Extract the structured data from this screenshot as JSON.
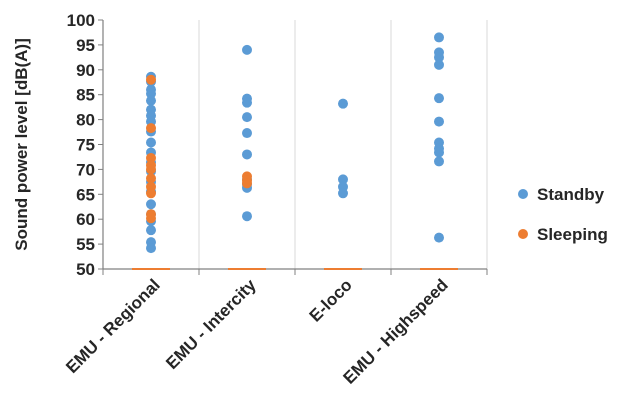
{
  "chart_data": {
    "type": "scatter",
    "categories": [
      "EMU - Regional",
      "EMU - Intercity",
      "E-loco",
      "EMU - Highspeed"
    ],
    "ylabel": "Sound power level [dB(A)]",
    "xlabel": "",
    "title": "",
    "ylim": [
      50,
      100
    ],
    "yticks": [
      50,
      55,
      60,
      65,
      70,
      75,
      80,
      85,
      90,
      95,
      100
    ],
    "grid": "vertical category dividers",
    "legend_position": "right",
    "series": [
      {
        "name": "Standby",
        "color": "#5b9bd5",
        "points": [
          {
            "category": "EMU - Regional",
            "values": [
              88.6,
              87.6,
              86.0,
              85.2,
              83.8,
              82.0,
              80.8,
              79.6,
              77.6,
              75.4,
              73.4,
              71.4,
              69.6,
              67.5,
              65.5,
              63.0,
              61.0,
              59.6,
              57.8,
              55.4,
              54.2
            ]
          },
          {
            "category": "EMU - Intercity",
            "values": [
              94.0,
              84.2,
              83.4,
              80.5,
              77.3,
              73.0,
              68.0,
              67.0,
              66.3,
              60.6
            ]
          },
          {
            "category": "E-loco",
            "values": [
              83.2,
              68.0,
              66.5,
              65.2
            ]
          },
          {
            "category": "EMU - Highspeed",
            "values": [
              96.5,
              93.5,
              92.5,
              91.0,
              84.3,
              79.6,
              75.4,
              74.2,
              73.4,
              71.6,
              56.3
            ]
          }
        ]
      },
      {
        "name": "Sleeping",
        "color": "#ed7d31",
        "points": [
          {
            "category": "EMU - Regional",
            "values": [
              88.0,
              78.3,
              72.3,
              70.8,
              70.0,
              68.2,
              66.5,
              65.2,
              61.0,
              60.2,
              50.0
            ]
          },
          {
            "category": "EMU - Intercity",
            "values": [
              68.6,
              67.8,
              67.2,
              50.0
            ]
          },
          {
            "category": "E-loco",
            "values": [
              50.0
            ]
          },
          {
            "category": "EMU - Highspeed",
            "values": [
              50.0
            ]
          }
        ]
      }
    ]
  }
}
